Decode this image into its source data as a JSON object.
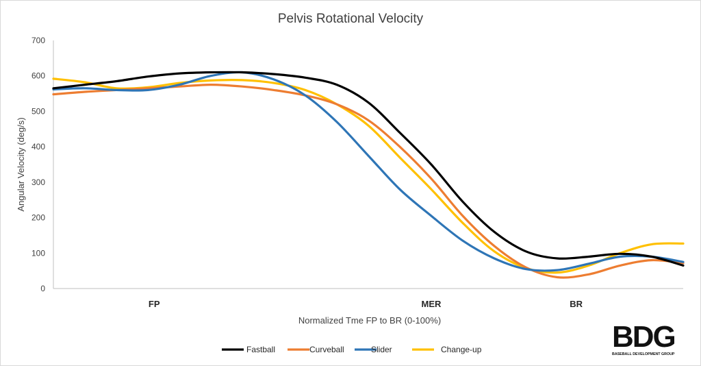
{
  "chart_data": {
    "type": "line",
    "title": "Pelvis Rotational Velocity",
    "xlabel": "Normalized Tme FP to BR (0-100%)",
    "ylabel": "Angular Velocity (deg/s)",
    "ylim": [
      0,
      700
    ],
    "yticks": [
      0,
      100,
      200,
      300,
      400,
      500,
      600,
      700
    ],
    "xlim": [
      0,
      100
    ],
    "x_markers": [
      {
        "label": "FP",
        "x": 16
      },
      {
        "label": "MER",
        "x": 60
      },
      {
        "label": "BR",
        "x": 83
      }
    ],
    "grid": false,
    "legend_position": "bottom",
    "series": [
      {
        "name": "Fastball",
        "color": "#000000",
        "x": [
          0,
          5,
          10,
          15,
          20,
          25,
          30,
          35,
          40,
          45,
          50,
          55,
          60,
          65,
          70,
          75,
          80,
          85,
          90,
          95,
          100
        ],
        "y": [
          565,
          575,
          585,
          598,
          607,
          610,
          610,
          605,
          595,
          575,
          525,
          440,
          350,
          245,
          160,
          105,
          85,
          90,
          98,
          90,
          65
        ]
      },
      {
        "name": "Curveball",
        "color": "#ED7D31",
        "x": [
          0,
          5,
          10,
          15,
          20,
          25,
          30,
          35,
          40,
          45,
          50,
          55,
          60,
          65,
          70,
          75,
          80,
          85,
          90,
          95,
          100
        ],
        "y": [
          548,
          555,
          560,
          565,
          570,
          575,
          570,
          560,
          545,
          520,
          475,
          400,
          310,
          205,
          120,
          60,
          32,
          40,
          65,
          80,
          72
        ]
      },
      {
        "name": "Slider",
        "color": "#2E75B6",
        "x": [
          0,
          5,
          10,
          15,
          20,
          25,
          30,
          35,
          40,
          45,
          50,
          55,
          60,
          65,
          70,
          75,
          80,
          85,
          90,
          95,
          100
        ],
        "y": [
          562,
          565,
          560,
          560,
          575,
          600,
          610,
          590,
          545,
          470,
          375,
          280,
          205,
          135,
          85,
          55,
          52,
          70,
          90,
          90,
          75
        ]
      },
      {
        "name": "Change-up",
        "color": "#FFC000",
        "x": [
          0,
          5,
          10,
          15,
          20,
          25,
          30,
          35,
          40,
          45,
          50,
          55,
          60,
          65,
          70,
          75,
          80,
          85,
          90,
          95,
          100
        ],
        "y": [
          592,
          582,
          565,
          568,
          580,
          587,
          588,
          580,
          560,
          520,
          460,
          370,
          280,
          185,
          105,
          58,
          45,
          65,
          100,
          125,
          127
        ]
      }
    ]
  },
  "logo": {
    "letters": "BDG",
    "subtitle": "BASEBALL DEVELOPMENT GROUP"
  }
}
